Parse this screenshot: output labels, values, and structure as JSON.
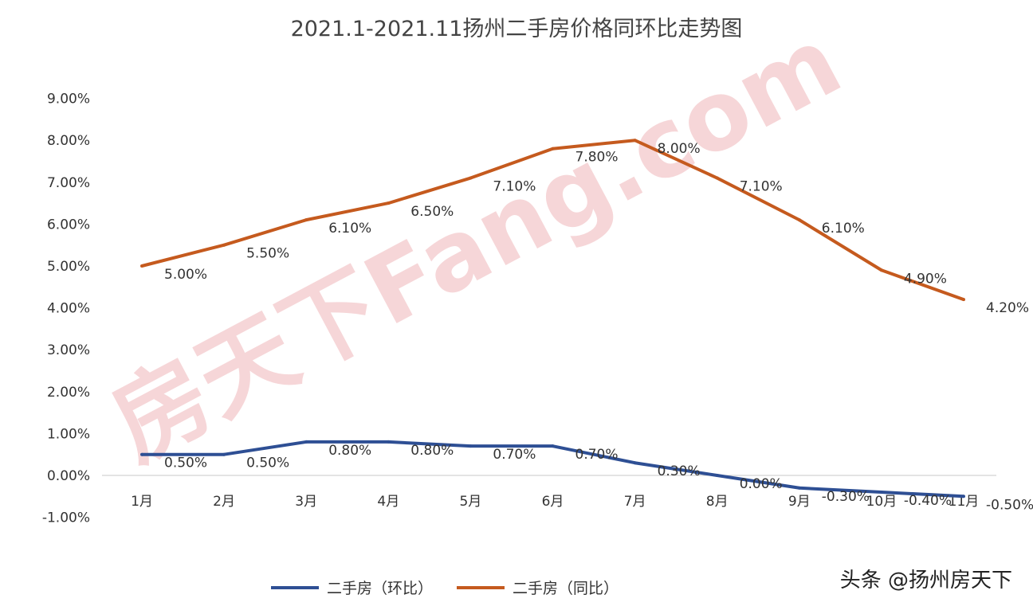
{
  "chart_data": {
    "type": "line",
    "title": "2021.1-2021.11扬州二手房价格同环比走势图",
    "categories": [
      "1月",
      "2月",
      "3月",
      "4月",
      "5月",
      "6月",
      "7月",
      "8月",
      "9月",
      "10月",
      "11月"
    ],
    "ylim": [
      -1,
      9
    ],
    "yticks": [
      "-1.00%",
      "0.00%",
      "1.00%",
      "2.00%",
      "3.00%",
      "4.00%",
      "5.00%",
      "6.00%",
      "7.00%",
      "8.00%",
      "9.00%"
    ],
    "grid": false,
    "legend_position": "bottom",
    "series": [
      {
        "name": "二手房（环比）",
        "color": "#2E4F94",
        "values": [
          0.5,
          0.5,
          0.8,
          0.8,
          0.7,
          0.7,
          0.3,
          0.0,
          -0.3,
          -0.4,
          -0.5
        ],
        "labels": [
          "0.50%",
          "0.50%",
          "0.80%",
          "0.80%",
          "0.70%",
          "0.70%",
          "0.30%",
          "0.00%",
          "-0.30%",
          "-0.40%",
          "-0.50%"
        ]
      },
      {
        "name": "二手房（同比）",
        "color": "#C55A1E",
        "values": [
          5.0,
          5.5,
          6.1,
          6.5,
          7.1,
          7.8,
          8.0,
          7.1,
          6.1,
          4.9,
          4.2
        ],
        "labels": [
          "5.00%",
          "5.50%",
          "6.10%",
          "6.50%",
          "7.10%",
          "7.80%",
          "8.00%",
          "7.10%",
          "6.10%",
          "4.90%",
          "4.20%"
        ]
      }
    ]
  },
  "watermark": {
    "center": "房天下Fang.com",
    "corner": "头条 @扬州房天下"
  }
}
